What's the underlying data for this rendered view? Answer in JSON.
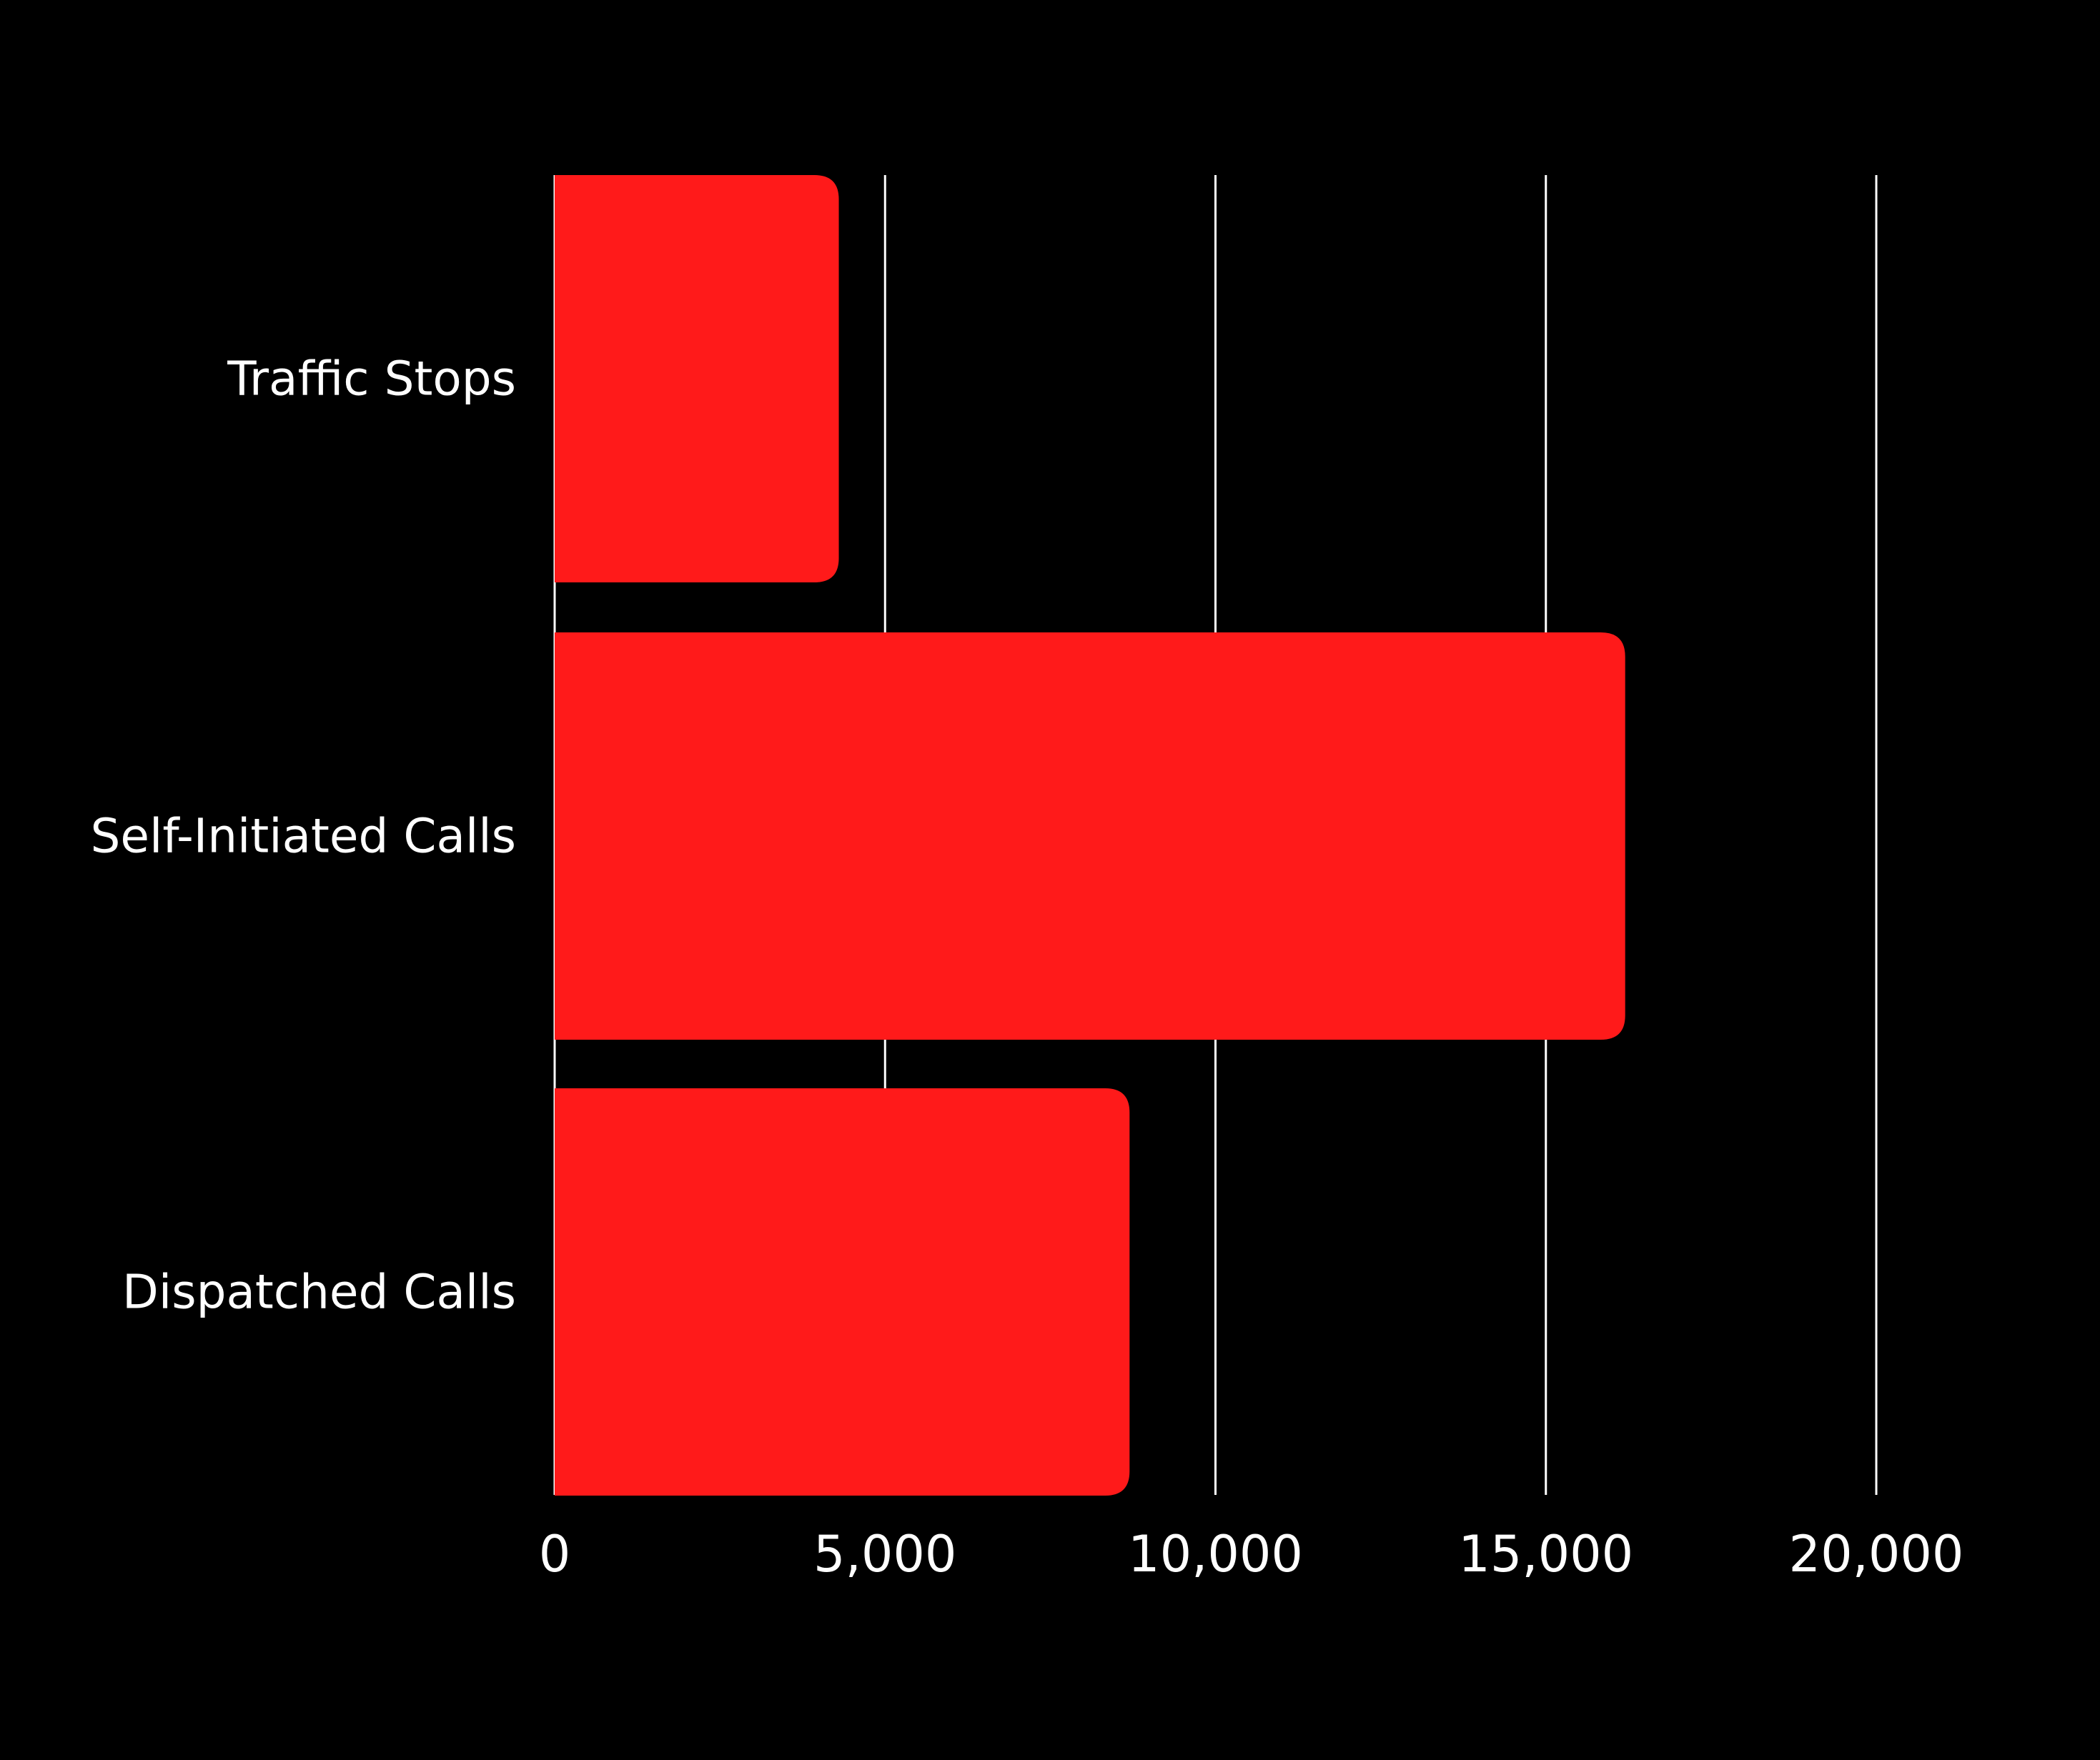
{
  "colors": {
    "background": "#000000",
    "bar": "#ff1a1a",
    "gridline": "#ffffff",
    "text": "#ffffff"
  },
  "chart_data": {
    "type": "bar",
    "orientation": "horizontal",
    "title": "",
    "xlabel": "",
    "ylabel": "",
    "categories": [
      "Traffic Stops",
      "Self-Initiated Calls",
      "Dispatched Calls"
    ],
    "values": [
      4300,
      16200,
      8700
    ],
    "xlim": [
      0,
      20000
    ],
    "xticks": [
      0,
      5000,
      10000,
      15000,
      20000
    ],
    "xtick_labels": [
      "0",
      "5,000",
      "10,000",
      "15,000",
      "20,000"
    ],
    "grid": "vertical",
    "legend": "none"
  }
}
